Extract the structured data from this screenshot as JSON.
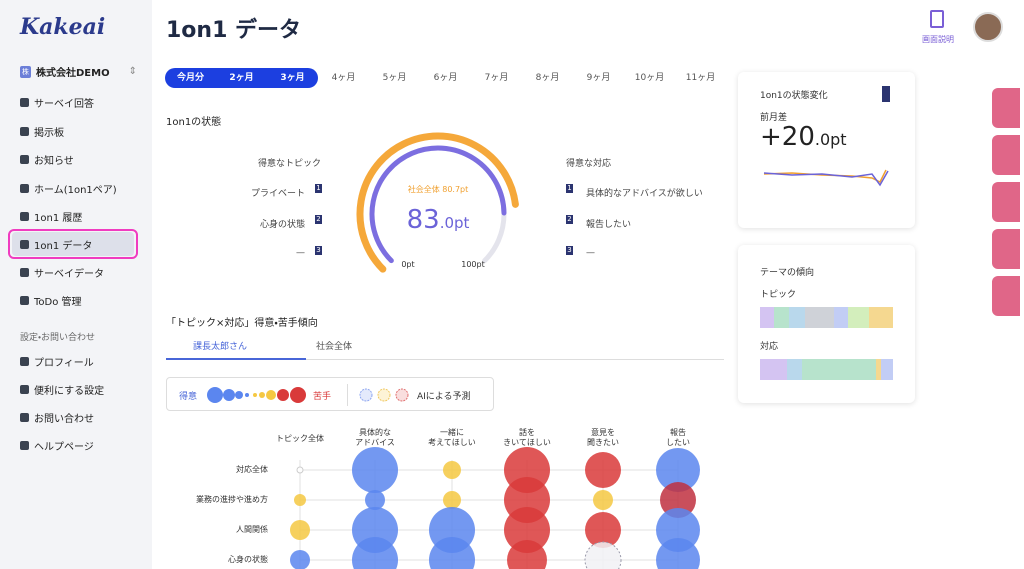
{
  "sidebar": {
    "logo": "Kakeai",
    "company": "株式会社DEMO",
    "company_badge": "株",
    "items": [
      "サーベイ回答",
      "掲示板",
      "お知らせ",
      "ホーム(1on1ペア)",
      "1on1 履歴",
      "1on1 データ",
      "サーベイデータ",
      "ToDo 管理"
    ],
    "section": "設定・お問い合わせ",
    "settings": [
      "プロフィール",
      "便利にする設定",
      "お問い合わせ",
      "ヘルプページ"
    ]
  },
  "header": {
    "title": "1on1 データ",
    "help": "画面説明"
  },
  "period_tabs": [
    "今月分",
    "2ヶ月",
    "3ヶ月",
    "4ヶ月",
    "5ヶ月",
    "6ヶ月",
    "7ヶ月",
    "8ヶ月",
    "9ヶ月",
    "10ヶ月",
    "11ヶ月"
  ],
  "status": {
    "title": "1on1の状態",
    "good_topics": {
      "heading": "得意なトピック",
      "items": [
        "プライベート",
        "心身の状態",
        "—"
      ],
      "ranks": [
        "1",
        "2",
        "3"
      ]
    },
    "good_responses": {
      "heading": "得意な対応",
      "items": [
        "具体的なアドバイスが欲しい",
        "報告したい",
        "—"
      ],
      "ranks": [
        "1",
        "2",
        "3"
      ]
    },
    "gauge": {
      "value": 83,
      "society": 80.7,
      "max": 100,
      "society_label": "社会全体 80.7pt",
      "score_main": "83",
      "score_suffix": ".0pt",
      "min_label": "0pt",
      "max_label": "100pt"
    }
  },
  "matrix": {
    "title": "「トピック×対応」得意・苦手傾向",
    "tabs": [
      "課長太郎さん",
      "社会全体"
    ],
    "legend": {
      "good": "得意",
      "bad": "苦手",
      "ai": "AIによる予測"
    },
    "columns": [
      "トピック全体",
      "具体的な\nアドバイス",
      "一緒に\n考えてほしい",
      "話を\nきいてほしい",
      "意見を\n聞きたい",
      "報告\nしたい"
    ],
    "rows": [
      "対応全体",
      "業務の進捗や進め方",
      "人間関係",
      "心身の状態"
    ]
  },
  "change_card": {
    "title": "1on1の状態変化",
    "label": "前月差",
    "value_main": "+20",
    "value_suffix": ".0pt"
  },
  "theme_card": {
    "title": "テーマの傾向",
    "topic": "トピック",
    "response": "対応"
  }
}
